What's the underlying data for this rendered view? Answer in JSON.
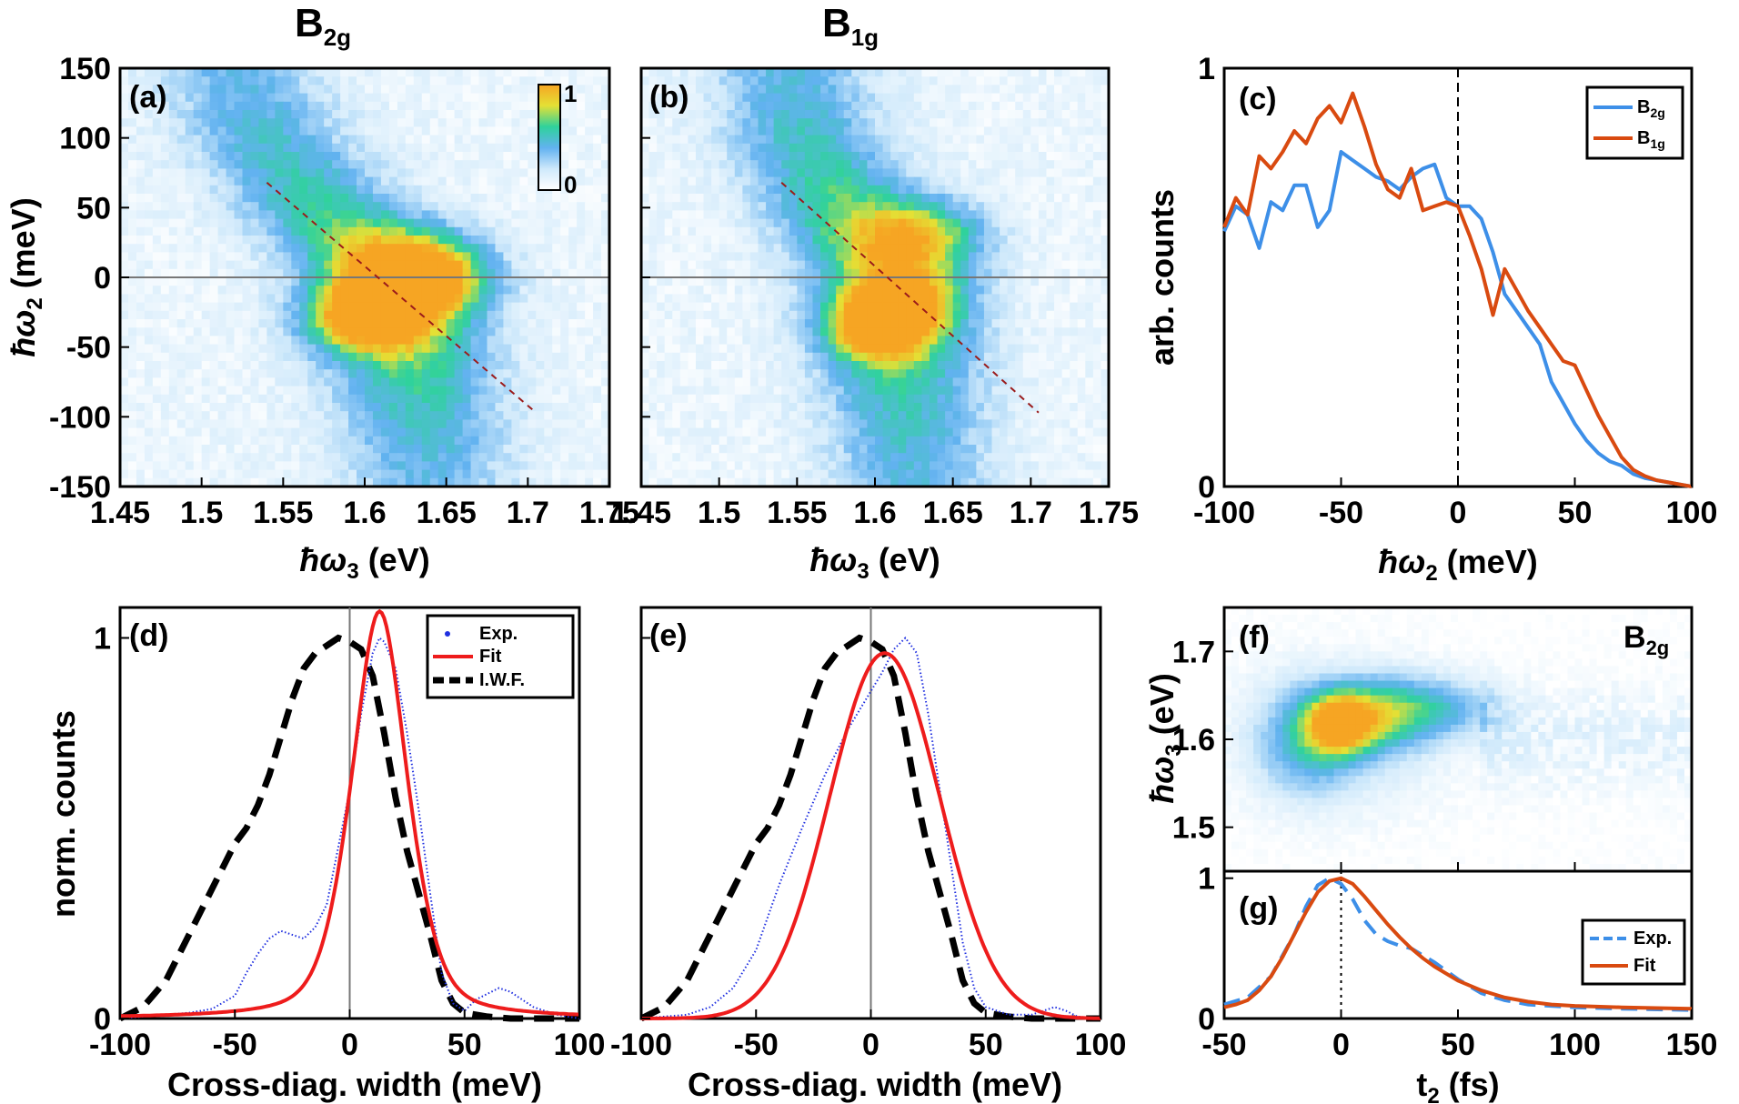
{
  "figure": {
    "title_a": "B",
    "title_a_sub": "2g",
    "title_b": "B",
    "title_b_sub": "1g"
  },
  "colors": {
    "blue": "#3d8fe8",
    "orange": "#d94a10",
    "red": "#ee1c1c",
    "exp_dots": "#1f2fe0",
    "iwf": "#000000",
    "diag_line": "#9b1b1b",
    "zero_line": "#777777"
  },
  "colorbar": {
    "max_label": "1",
    "min_label": "0"
  },
  "chart_data": [
    {
      "id": "a",
      "type": "heatmap",
      "panel_label": "(a)",
      "xlabel": "ħω",
      "xlabel_sub": "3",
      "xlabel_unit": " (eV)",
      "ylabel": "ħω",
      "ylabel_sub": "2",
      "ylabel_unit": " (meV)",
      "xlim": [
        1.45,
        1.75
      ],
      "ylim": [
        -150,
        150
      ],
      "xticks": [
        "1.45",
        "1.5",
        "1.55",
        "1.6",
        "1.65",
        "1.7",
        "1.75"
      ],
      "xtick_values": [
        1.45,
        1.5,
        1.55,
        1.6,
        1.65,
        1.7,
        1.75
      ],
      "yticks": [
        "150",
        "100",
        "50",
        "0",
        "-50",
        "-100",
        "-150"
      ],
      "ytick_values": [
        150,
        100,
        50,
        0,
        -50,
        -100,
        -150
      ],
      "ridge": [
        [
          1.52,
          150,
          0.35
        ],
        [
          1.54,
          100,
          0.45
        ],
        [
          1.575,
          50,
          0.6
        ],
        [
          1.615,
          0,
          0.8
        ],
        [
          1.625,
          -50,
          0.7
        ],
        [
          1.635,
          -100,
          0.5
        ],
        [
          1.64,
          -150,
          0.35
        ]
      ],
      "hotspots": [
        [
          1.635,
          5,
          0.04,
          28,
          0.95
        ],
        [
          1.6,
          -30,
          0.035,
          22,
          0.9
        ],
        [
          1.62,
          -10,
          0.03,
          18,
          0.75
        ]
      ],
      "cross_diag_line": [
        [
          1.54,
          68
        ],
        [
          1.705,
          -97
        ]
      ],
      "hline": 0
    },
    {
      "id": "b",
      "type": "heatmap",
      "panel_label": "(b)",
      "xlabel": "ħω",
      "xlabel_sub": "3",
      "xlabel_unit": " (eV)",
      "xlim": [
        1.45,
        1.75
      ],
      "ylim": [
        -150,
        150
      ],
      "xticks": [
        "1.45",
        "1.5",
        "1.55",
        "1.6",
        "1.65",
        "1.7",
        "1.75"
      ],
      "xtick_values": [
        1.45,
        1.5,
        1.55,
        1.6,
        1.65,
        1.7,
        1.75
      ],
      "ytick_values": [
        150,
        100,
        50,
        0,
        -50,
        -100,
        -150
      ],
      "ridge": [
        [
          1.545,
          150,
          0.4
        ],
        [
          1.555,
          100,
          0.5
        ],
        [
          1.58,
          50,
          0.65
        ],
        [
          1.61,
          0,
          0.75
        ],
        [
          1.615,
          -50,
          0.65
        ],
        [
          1.62,
          -100,
          0.5
        ],
        [
          1.625,
          -150,
          0.4
        ]
      ],
      "hotspots": [
        [
          1.63,
          30,
          0.04,
          25,
          0.7
        ],
        [
          1.615,
          -20,
          0.035,
          22,
          0.85
        ],
        [
          1.6,
          -40,
          0.03,
          20,
          0.75
        ]
      ],
      "cross_diag_line": [
        [
          1.54,
          68
        ],
        [
          1.705,
          -97
        ]
      ],
      "hline": 0
    },
    {
      "id": "c",
      "type": "line",
      "panel_label": "(c)",
      "xlabel": "ħω",
      "xlabel_sub": "2",
      "xlabel_unit": " (meV)",
      "ylabel": "arb. counts",
      "xlim": [
        -100,
        100
      ],
      "ylim": [
        0,
        1
      ],
      "xticks": [
        "-100",
        "-50",
        "0",
        "50",
        "100"
      ],
      "xtick_values": [
        -100,
        -50,
        0,
        50,
        100
      ],
      "yticks": [
        "1",
        "0"
      ],
      "ytick_values": [
        1,
        0
      ],
      "vline": 0,
      "legend": [
        {
          "name": "B",
          "sub": "2g"
        },
        {
          "name": "B",
          "sub": "1g"
        }
      ],
      "series": [
        {
          "name": "B2g",
          "color": "blue",
          "x": [
            -100,
            -95,
            -90,
            -85,
            -80,
            -75,
            -70,
            -65,
            -60,
            -55,
            -50,
            -45,
            -40,
            -35,
            -30,
            -25,
            -20,
            -15,
            -10,
            -5,
            0,
            5,
            10,
            15,
            20,
            25,
            30,
            35,
            40,
            45,
            50,
            55,
            60,
            65,
            70,
            75,
            80,
            85,
            90,
            95,
            100
          ],
          "y": [
            0.61,
            0.67,
            0.65,
            0.57,
            0.68,
            0.66,
            0.72,
            0.72,
            0.62,
            0.66,
            0.8,
            0.78,
            0.76,
            0.74,
            0.73,
            0.71,
            0.74,
            0.76,
            0.77,
            0.69,
            0.67,
            0.67,
            0.64,
            0.56,
            0.46,
            0.42,
            0.38,
            0.34,
            0.25,
            0.2,
            0.15,
            0.11,
            0.08,
            0.06,
            0.05,
            0.03,
            0.02,
            0.015,
            0.01,
            0.005,
            0.0
          ]
        },
        {
          "name": "B1g",
          "color": "orange",
          "x": [
            -100,
            -95,
            -90,
            -85,
            -80,
            -75,
            -70,
            -65,
            -60,
            -55,
            -50,
            -45,
            -40,
            -35,
            -30,
            -25,
            -20,
            -15,
            -10,
            -5,
            0,
            5,
            10,
            15,
            20,
            25,
            30,
            35,
            40,
            45,
            50,
            55,
            60,
            65,
            70,
            75,
            80,
            85,
            90,
            95,
            100
          ],
          "y": [
            0.62,
            0.69,
            0.65,
            0.79,
            0.76,
            0.8,
            0.85,
            0.82,
            0.88,
            0.91,
            0.87,
            0.94,
            0.86,
            0.77,
            0.71,
            0.69,
            0.76,
            0.66,
            0.67,
            0.68,
            0.67,
            0.6,
            0.52,
            0.41,
            0.52,
            0.47,
            0.42,
            0.38,
            0.34,
            0.3,
            0.29,
            0.23,
            0.17,
            0.12,
            0.07,
            0.04,
            0.025,
            0.015,
            0.01,
            0.005,
            0.0
          ]
        }
      ]
    },
    {
      "id": "d",
      "type": "line",
      "panel_label": "(d)",
      "xlabel": "Cross-diag. width (meV)",
      "ylabel": "norm. counts",
      "xlim": [
        -100,
        100
      ],
      "ylim": [
        0,
        1.08
      ],
      "xticks": [
        "-100",
        "-50",
        "0",
        "50",
        "100"
      ],
      "xtick_values": [
        -100,
        -50,
        0,
        50,
        100
      ],
      "yticks": [
        "1",
        "0"
      ],
      "ytick_values": [
        1,
        0
      ],
      "vline": 0,
      "legend": [
        {
          "name": "Exp.",
          "style": "dot"
        },
        {
          "name": "Fit",
          "style": "solid"
        },
        {
          "name": "I.W.F.",
          "style": "dash"
        }
      ],
      "exp": {
        "x": [
          -100,
          -90,
          -80,
          -70,
          -60,
          -50,
          -45,
          -40,
          -35,
          -30,
          -25,
          -20,
          -15,
          -10,
          -5,
          0,
          5,
          10,
          13,
          15,
          20,
          25,
          30,
          35,
          40,
          45,
          50,
          55,
          60,
          65,
          70,
          75,
          80,
          90,
          100
        ],
        "y": [
          0.0,
          0.005,
          0.01,
          0.015,
          0.025,
          0.06,
          0.12,
          0.17,
          0.21,
          0.23,
          0.22,
          0.21,
          0.24,
          0.3,
          0.45,
          0.6,
          0.8,
          0.96,
          1.0,
          0.99,
          0.92,
          0.75,
          0.55,
          0.33,
          0.12,
          0.04,
          0.02,
          0.05,
          0.065,
          0.08,
          0.07,
          0.05,
          0.03,
          0.01,
          0.0
        ]
      },
      "fit": {
        "type": "lorentz_gauss",
        "center": 13,
        "width": 13,
        "amp": 1.07
      },
      "iwf": {
        "x": [
          -100,
          -90,
          -80,
          -70,
          -60,
          -50,
          -45,
          -40,
          -35,
          -30,
          -25,
          -20,
          -15,
          -10,
          -5,
          0,
          5,
          10,
          15,
          20,
          25,
          30,
          35,
          40,
          45,
          50,
          60,
          70,
          80,
          90,
          100
        ],
        "y": [
          0.0,
          0.03,
          0.1,
          0.22,
          0.34,
          0.46,
          0.5,
          0.56,
          0.64,
          0.74,
          0.84,
          0.92,
          0.96,
          0.98,
          1.0,
          0.99,
          0.97,
          0.9,
          0.75,
          0.58,
          0.44,
          0.33,
          0.22,
          0.1,
          0.04,
          0.015,
          0.005,
          0.0,
          0.0,
          0.0,
          0.0
        ]
      }
    },
    {
      "id": "e",
      "type": "line",
      "panel_label": "(e)",
      "xlabel": "Cross-diag. width (meV)",
      "xlim": [
        -100,
        100
      ],
      "ylim": [
        0,
        1.08
      ],
      "xticks": [
        "-100",
        "-50",
        "0",
        "50",
        "100"
      ],
      "xtick_values": [
        -100,
        -50,
        0,
        50,
        100
      ],
      "ytick_values": [
        1,
        0
      ],
      "vline": 0,
      "exp": {
        "x": [
          -100,
          -90,
          -80,
          -70,
          -60,
          -50,
          -40,
          -30,
          -20,
          -10,
          0,
          5,
          10,
          15,
          20,
          25,
          30,
          35,
          40,
          45,
          50,
          60,
          70,
          75,
          80,
          85,
          90,
          100
        ],
        "y": [
          0.0,
          0.005,
          0.01,
          0.03,
          0.08,
          0.18,
          0.35,
          0.5,
          0.64,
          0.76,
          0.86,
          0.91,
          0.97,
          1.0,
          0.96,
          0.8,
          0.6,
          0.4,
          0.2,
          0.08,
          0.03,
          0.01,
          0.01,
          0.02,
          0.03,
          0.02,
          0.005,
          0.0
        ]
      },
      "fit": {
        "type": "gauss",
        "center": 6,
        "sigma": 24,
        "amp": 0.96
      },
      "iwf": {
        "x": [
          -100,
          -90,
          -80,
          -70,
          -60,
          -50,
          -45,
          -40,
          -35,
          -30,
          -25,
          -20,
          -15,
          -10,
          -5,
          0,
          5,
          10,
          15,
          20,
          25,
          30,
          35,
          40,
          45,
          50,
          60,
          70,
          80,
          90,
          100
        ],
        "y": [
          0.0,
          0.03,
          0.1,
          0.22,
          0.34,
          0.46,
          0.5,
          0.56,
          0.64,
          0.74,
          0.84,
          0.92,
          0.96,
          0.98,
          1.0,
          0.99,
          0.97,
          0.9,
          0.75,
          0.58,
          0.44,
          0.33,
          0.22,
          0.1,
          0.04,
          0.015,
          0.005,
          0.0,
          0.0,
          0.0,
          0.0
        ]
      }
    },
    {
      "id": "f",
      "type": "heatmap",
      "panel_label": "(f)",
      "annotation": "B",
      "annotation_sub": "2g",
      "ylabel": "ħω",
      "ylabel_sub": "3",
      "ylabel_unit": " (eV)",
      "xlim": [
        -50,
        150
      ],
      "ylim": [
        1.45,
        1.75
      ],
      "yticks": [
        "1.7",
        "1.6",
        "1.5"
      ],
      "ytick_values": [
        1.7,
        1.6,
        1.5
      ],
      "xtick_values": [
        -50,
        0,
        50,
        100,
        150
      ],
      "blobs": [
        [
          0,
          1.62,
          14,
          0.035,
          1.0
        ],
        [
          20,
          1.63,
          18,
          0.04,
          0.55
        ],
        [
          45,
          1.635,
          22,
          0.035,
          0.4
        ],
        [
          -15,
          1.6,
          20,
          0.06,
          0.4
        ],
        [
          0,
          1.6,
          45,
          0.08,
          0.22
        ]
      ]
    },
    {
      "id": "g",
      "type": "line",
      "panel_label": "(g)",
      "xlabel": "t",
      "xlabel_sub": "2",
      "xlabel_unit": " (fs)",
      "xlim": [
        -50,
        150
      ],
      "ylim": [
        0,
        1.05
      ],
      "xticks": [
        "-50",
        "0",
        "50",
        "100",
        "150"
      ],
      "xtick_values": [
        -50,
        0,
        50,
        100,
        150
      ],
      "yticks": [
        "1",
        "0"
      ],
      "ytick_values": [
        1,
        0
      ],
      "vline": 0,
      "legend": [
        {
          "name": "Exp.",
          "style": "dash"
        },
        {
          "name": "Fit",
          "style": "solid"
        }
      ],
      "exp": {
        "x": [
          -50,
          -40,
          -30,
          -20,
          -15,
          -10,
          -5,
          0,
          5,
          10,
          15,
          20,
          25,
          30,
          40,
          50,
          60,
          70,
          80,
          100,
          120,
          150
        ],
        "y": [
          0.1,
          0.15,
          0.3,
          0.6,
          0.8,
          0.95,
          1.0,
          0.96,
          0.85,
          0.7,
          0.6,
          0.55,
          0.52,
          0.5,
          0.4,
          0.28,
          0.18,
          0.13,
          0.1,
          0.08,
          0.07,
          0.06
        ]
      },
      "fit": {
        "x": [
          -50,
          -45,
          -40,
          -35,
          -30,
          -25,
          -20,
          -15,
          -10,
          -5,
          0,
          5,
          10,
          15,
          20,
          25,
          30,
          35,
          40,
          50,
          60,
          70,
          80,
          90,
          100,
          120,
          150
        ],
        "y": [
          0.08,
          0.1,
          0.13,
          0.2,
          0.3,
          0.44,
          0.6,
          0.76,
          0.9,
          0.98,
          1.0,
          0.96,
          0.87,
          0.77,
          0.67,
          0.58,
          0.5,
          0.43,
          0.37,
          0.27,
          0.2,
          0.15,
          0.12,
          0.1,
          0.09,
          0.08,
          0.07
        ]
      }
    }
  ]
}
